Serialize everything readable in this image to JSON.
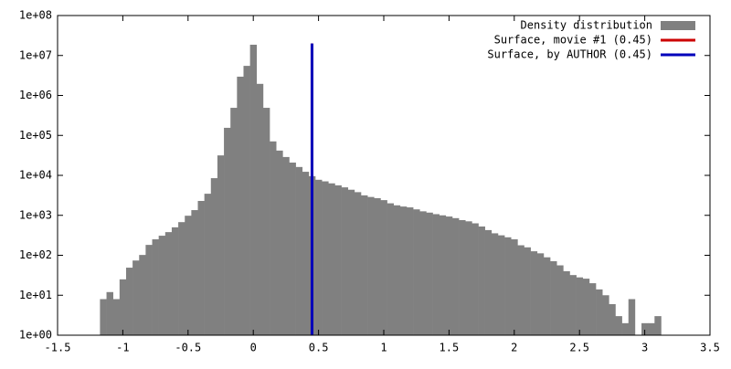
{
  "chart_data": {
    "type": "histogram",
    "log_y": true,
    "legend": "top-right",
    "bins": [
      -1.175,
      -1.125,
      -1.075,
      -1.025,
      -0.975,
      -0.925,
      -0.875,
      -0.825,
      -0.775,
      -0.725,
      -0.675,
      -0.625,
      -0.575,
      -0.525,
      -0.475,
      -0.425,
      -0.375,
      -0.325,
      -0.275,
      -0.225,
      -0.175,
      -0.125,
      -0.075,
      -0.025,
      0.025,
      0.075,
      0.125,
      0.175,
      0.225,
      0.275,
      0.325,
      0.375,
      0.425,
      0.475,
      0.525,
      0.575,
      0.625,
      0.675,
      0.725,
      0.775,
      0.825,
      0.875,
      0.925,
      0.975,
      1.025,
      1.075,
      1.125,
      1.175,
      1.225,
      1.275,
      1.325,
      1.375,
      1.425,
      1.475,
      1.525,
      1.575,
      1.625,
      1.675,
      1.725,
      1.775,
      1.825,
      1.875,
      1.925,
      1.975,
      2.025,
      2.075,
      2.125,
      2.175,
      2.225,
      2.275,
      2.325,
      2.375,
      2.425,
      2.475,
      2.525,
      2.575,
      2.625,
      2.675,
      2.725,
      2.775,
      2.825,
      2.875,
      2.925,
      2.975,
      3.025,
      3.075,
      3.125
    ],
    "series": [
      {
        "name": "Density distribution",
        "color": "#808080",
        "values": [
          8,
          12,
          8,
          25,
          49,
          74,
          102,
          182,
          251,
          309,
          380,
          501,
          676,
          977,
          1350,
          2290,
          3470,
          8510,
          31600,
          155000,
          490000,
          2950000,
          5500000,
          18600000,
          1950000,
          490000,
          70800,
          41700,
          28800,
          20900,
          16200,
          12300,
          9550,
          7760,
          7080,
          6310,
          5620,
          5010,
          4370,
          3800,
          3160,
          2880,
          2690,
          2400,
          2000,
          1780,
          1660,
          1580,
          1410,
          1260,
          1170,
          1070,
          1000,
          933,
          851,
          759,
          708,
          631,
          525,
          427,
          355,
          316,
          282,
          251,
          178,
          158,
          126,
          112,
          89,
          71,
          56,
          40,
          32,
          28,
          26,
          20,
          14,
          10,
          6,
          3,
          2,
          8,
          1,
          2,
          2,
          3
        ]
      },
      {
        "name": "Surface, movie #1 (0.45)",
        "color": "#cc0000",
        "type": "line",
        "x": [
          0.45,
          0.45
        ],
        "values": [
          1,
          20000000
        ]
      },
      {
        "name": "Surface, by AUTHOR (0.45)",
        "color": "#0000bb",
        "type": "line",
        "x": [
          0.45,
          0.45
        ],
        "values": [
          1,
          20000000
        ]
      }
    ],
    "xlim": [
      -1.5,
      3.5
    ],
    "xticks": [
      -1.5,
      -1,
      -0.5,
      0,
      0.5,
      1,
      1.5,
      2,
      2.5,
      3,
      3.5
    ],
    "ylim": [
      1,
      100000000
    ],
    "yticks": [
      {
        "value": 1,
        "label": "1e+00"
      },
      {
        "value": 10,
        "label": "1e+01"
      },
      {
        "value": 100,
        "label": "1e+02"
      },
      {
        "value": 1000,
        "label": "1e+03"
      },
      {
        "value": 10000,
        "label": "1e+04"
      },
      {
        "value": 100000,
        "label": "1e+05"
      },
      {
        "value": 1000000,
        "label": "1e+06"
      },
      {
        "value": 10000000,
        "label": "1e+07"
      },
      {
        "value": 100000000,
        "label": "1e+08"
      }
    ]
  }
}
